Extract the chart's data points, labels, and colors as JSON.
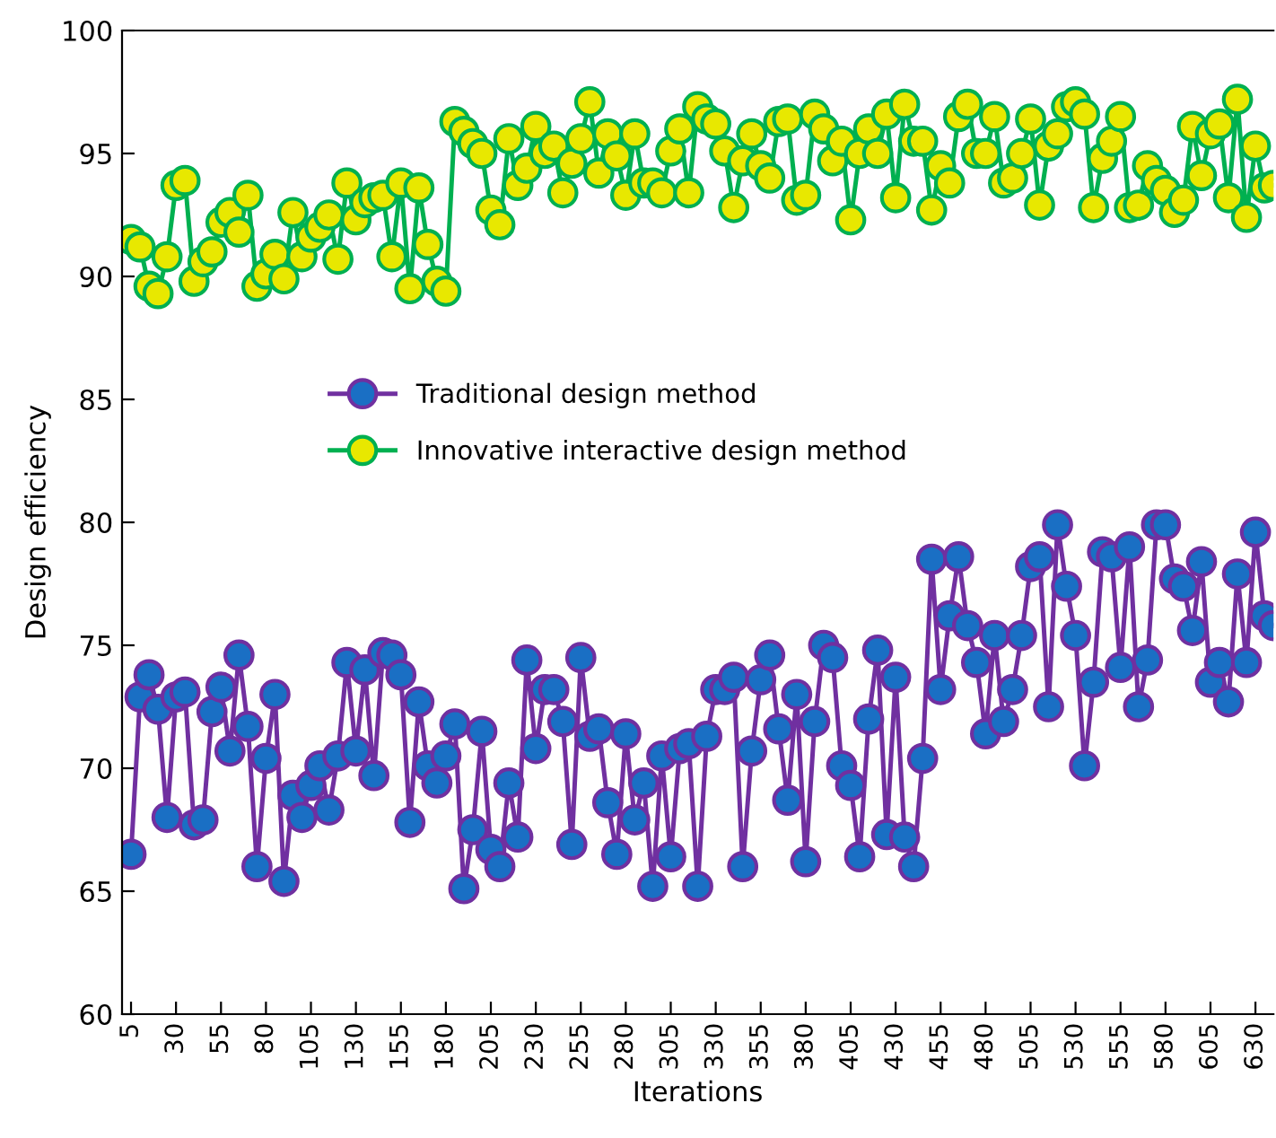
{
  "chart_data": {
    "type": "line",
    "xlabel": "Iterations",
    "ylabel": "Design efficiency",
    "x": [
      5,
      10,
      15,
      20,
      25,
      30,
      35,
      40,
      45,
      50,
      55,
      60,
      65,
      70,
      75,
      80,
      85,
      90,
      95,
      100,
      105,
      110,
      115,
      120,
      125,
      130,
      135,
      140,
      145,
      150,
      155,
      160,
      165,
      170,
      175,
      180,
      185,
      190,
      195,
      200,
      205,
      210,
      215,
      220,
      225,
      230,
      235,
      240,
      245,
      250,
      255,
      260,
      265,
      270,
      275,
      280,
      285,
      290,
      295,
      300,
      305,
      310,
      315,
      320,
      325,
      330,
      335,
      340,
      345,
      350,
      355,
      360,
      365,
      370,
      375,
      380,
      385,
      390,
      395,
      400,
      405,
      410,
      415,
      420,
      425,
      430,
      435,
      440,
      445,
      450,
      455,
      460,
      465,
      470,
      475,
      480,
      485,
      490,
      495,
      500,
      505,
      510,
      515,
      520,
      525,
      530,
      535,
      540,
      545,
      550,
      555,
      560,
      565,
      570,
      575,
      580,
      585,
      590,
      595,
      600,
      605,
      610,
      615,
      620,
      625,
      630,
      635,
      640
    ],
    "series": [
      {
        "name": "Traditional design method",
        "color": "#7030a0",
        "values": [
          66.5,
          72.9,
          73.8,
          72.4,
          68.0,
          72.9,
          73.1,
          67.7,
          67.9,
          72.3,
          73.3,
          70.7,
          74.6,
          71.7,
          66.0,
          70.4,
          73.0,
          65.4,
          68.9,
          68.0,
          69.3,
          70.1,
          68.3,
          70.5,
          74.3,
          70.7,
          74.0,
          69.7,
          74.7,
          74.6,
          73.8,
          67.8,
          72.7,
          70.1,
          69.4,
          70.5,
          71.8,
          65.1,
          67.5,
          71.5,
          66.7,
          66.0,
          69.4,
          67.2,
          74.4,
          70.8,
          73.2,
          73.2,
          71.9,
          66.9,
          74.5,
          71.3,
          71.6,
          68.6,
          66.5,
          71.4,
          67.9,
          69.4,
          65.2,
          70.5,
          66.4,
          70.8,
          71.0,
          65.2,
          71.3,
          73.2,
          73.2,
          73.7,
          66.0,
          70.7,
          73.6,
          74.6,
          71.6,
          68.7,
          73.0,
          66.2,
          71.9,
          75.0,
          74.5,
          70.1,
          69.3,
          66.4,
          72.0,
          74.8,
          67.3,
          73.7,
          67.2,
          66.0,
          70.4,
          78.5,
          73.2,
          76.2,
          78.6,
          75.8,
          74.3,
          71.4,
          75.4,
          71.9,
          73.2,
          75.4,
          78.2,
          78.6,
          72.5,
          79.9,
          77.4,
          75.4,
          70.1,
          73.5,
          78.8,
          78.6,
          74.1,
          79.0,
          72.5,
          74.4,
          79.9,
          79.9,
          77.7,
          77.4,
          75.6,
          78.4,
          73.5,
          74.3,
          72.7,
          77.9,
          74.3,
          79.6,
          76.2,
          75.8
        ]
      },
      {
        "name": "Innovative interactive design method",
        "color": "#00b050",
        "values": [
          91.5,
          91.2,
          89.6,
          89.3,
          90.8,
          93.7,
          93.9,
          89.8,
          90.6,
          91.0,
          92.2,
          92.6,
          91.8,
          93.3,
          89.6,
          90.1,
          90.9,
          89.9,
          92.6,
          90.8,
          91.6,
          92.0,
          92.5,
          90.7,
          93.8,
          92.3,
          93.0,
          93.2,
          93.3,
          90.8,
          93.8,
          89.5,
          93.6,
          91.3,
          89.8,
          89.4,
          96.3,
          95.9,
          95.4,
          95.0,
          92.7,
          92.1,
          95.6,
          93.7,
          94.4,
          96.1,
          95.0,
          95.3,
          93.4,
          94.6,
          95.6,
          97.1,
          94.2,
          95.8,
          94.9,
          93.3,
          95.8,
          93.8,
          93.8,
          93.4,
          95.1,
          96.0,
          93.4,
          96.9,
          96.4,
          96.2,
          95.1,
          92.8,
          94.7,
          95.8,
          94.5,
          94.0,
          96.3,
          96.4,
          93.1,
          93.3,
          96.6,
          96.0,
          94.7,
          95.5,
          92.3,
          95.0,
          96.0,
          95.0,
          96.6,
          93.2,
          97.0,
          95.5,
          95.5,
          92.7,
          94.5,
          93.8,
          96.5,
          97.0,
          95.0,
          95.0,
          96.5,
          93.8,
          94.0,
          95.0,
          96.4,
          92.9,
          95.3,
          95.8,
          96.9,
          97.1,
          96.6,
          92.8,
          94.8,
          95.5,
          96.5,
          92.8,
          92.9,
          94.5,
          93.9,
          93.5,
          92.6,
          93.1,
          96.1,
          94.1,
          95.8,
          96.2,
          93.2,
          97.2,
          92.4,
          95.3,
          93.6,
          93.7
        ]
      }
    ],
    "xlim": [
      0,
      640
    ],
    "ylim": [
      60,
      100
    ],
    "xticks": [
      5,
      30,
      55,
      80,
      105,
      130,
      155,
      180,
      205,
      230,
      255,
      280,
      305,
      330,
      355,
      380,
      405,
      430,
      455,
      480,
      505,
      530,
      555,
      580,
      605,
      630
    ],
    "yticks": [
      60,
      65,
      70,
      75,
      80,
      85,
      90,
      95,
      100
    ],
    "grid": false,
    "legend": "center left",
    "marker": "circle",
    "line_style": "solid"
  }
}
